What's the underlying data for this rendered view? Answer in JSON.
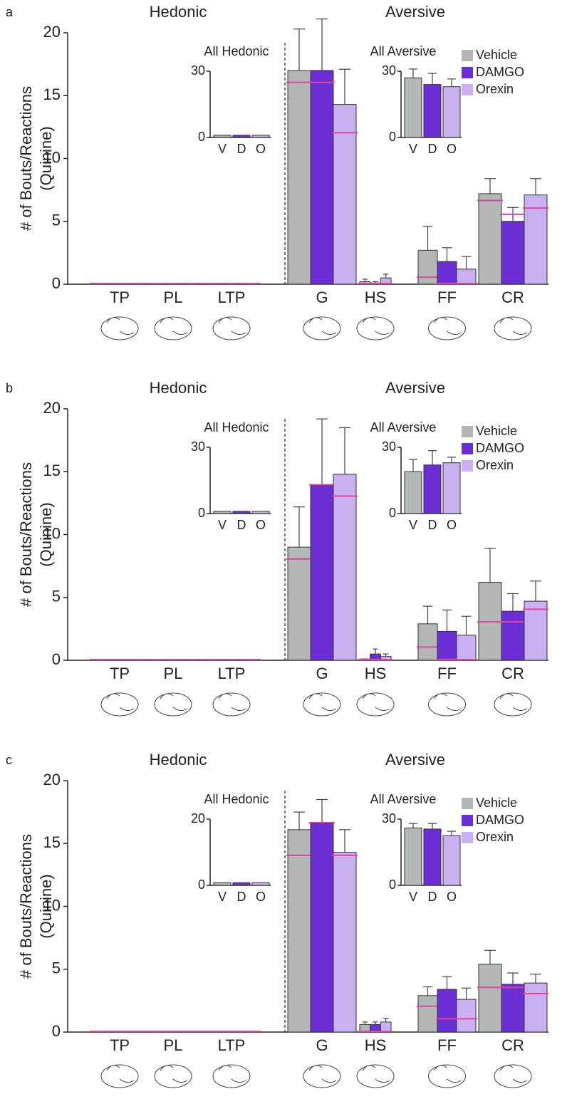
{
  "chart_data": [
    {
      "type": "bar",
      "panel": "a",
      "annotations": [
        "Hedonic",
        "Aversive"
      ],
      "y_label": [
        "# of Bouts/Reactions",
        "(Quinine)"
      ],
      "categories": [
        "TP",
        "PL",
        "LTP",
        "G",
        "HS",
        "FF",
        "CR"
      ],
      "ylim": [
        0,
        20
      ],
      "yticks": [
        0,
        5,
        10,
        15,
        20
      ],
      "median_color": "#e0449c",
      "series": [
        {
          "name": "Vehicle",
          "color": "#b3b8b6",
          "values": [
            0,
            0,
            0,
            17,
            0.2,
            2.7,
            7.2
          ],
          "errors": [
            0,
            0,
            0,
            3.3,
            0.2,
            1.9,
            1.2
          ],
          "medians": [
            0,
            0,
            0,
            16,
            0,
            0.5,
            6.6
          ]
        },
        {
          "name": "DAMGO",
          "color": "#6a2ed4",
          "values": [
            0,
            0,
            0,
            17,
            0.1,
            1.8,
            5.0
          ],
          "errors": [
            0,
            0,
            0,
            4.1,
            0.1,
            1.1,
            1.1
          ],
          "medians": [
            0,
            0,
            0,
            16,
            0,
            0,
            5.5
          ]
        },
        {
          "name": "Orexin",
          "color": "#c9b0f0",
          "values": [
            0,
            0,
            0,
            14.3,
            0.5,
            1.2,
            7.1
          ],
          "errors": [
            0,
            0,
            0,
            2.8,
            0.3,
            1.0,
            1.3
          ],
          "medians": [
            0,
            0,
            0,
            12,
            0,
            0,
            6.0
          ]
        }
      ]
    },
    {
      "type": "bar",
      "title": "All Hedonic",
      "categories": [
        "V",
        "D",
        "O"
      ],
      "values": [
        1,
        1,
        1
      ],
      "colors": [
        "#b3b8b6",
        "#6a2ed4",
        "#c9b0f0"
      ],
      "ylim": [
        0,
        30
      ],
      "yticks": [
        0,
        30
      ]
    },
    {
      "type": "bar",
      "title": "All Aversive",
      "categories": [
        "V",
        "D",
        "O"
      ],
      "values": [
        27,
        24,
        23
      ],
      "errors": [
        4,
        5,
        3.5
      ],
      "colors": [
        "#b3b8b6",
        "#6a2ed4",
        "#c9b0f0"
      ],
      "ylim": [
        0,
        30
      ],
      "yticks": [
        0,
        30
      ]
    },
    {
      "type": "bar",
      "panel": "b",
      "annotations": [
        "Hedonic",
        "Aversive"
      ],
      "y_label": [
        "# of Bouts/Reactions",
        "(Quinine)"
      ],
      "categories": [
        "TP",
        "PL",
        "LTP",
        "G",
        "HS",
        "FF",
        "CR"
      ],
      "ylim": [
        0,
        20
      ],
      "yticks": [
        0,
        5,
        10,
        15,
        20
      ],
      "median_color": "#e0449c",
      "series": [
        {
          "name": "Vehicle",
          "color": "#b3b8b6",
          "values": [
            0,
            0,
            0,
            9.0,
            0.1,
            2.9,
            6.2
          ],
          "errors": [
            0,
            0,
            0,
            3.2,
            0,
            1.4,
            2.7
          ],
          "medians": [
            0,
            0,
            0,
            8,
            0,
            1,
            3
          ]
        },
        {
          "name": "DAMGO",
          "color": "#6a2ed4",
          "values": [
            0,
            0,
            0,
            13.9,
            0.5,
            2.3,
            3.9
          ],
          "errors": [
            0,
            0,
            0,
            5.3,
            0.4,
            1.7,
            1.4
          ],
          "medians": [
            0,
            0,
            0,
            13.9,
            0,
            0,
            3
          ]
        },
        {
          "name": "Orexin",
          "color": "#c9b0f0",
          "values": [
            0,
            0,
            0,
            14.8,
            0.3,
            2.0,
            4.7
          ],
          "errors": [
            0,
            0,
            0,
            3.7,
            0.2,
            1.5,
            1.6
          ],
          "medians": [
            0,
            0,
            0,
            13,
            0,
            0,
            4
          ]
        }
      ]
    },
    {
      "type": "bar",
      "title": "All Hedonic",
      "categories": [
        "V",
        "D",
        "O"
      ],
      "values": [
        1,
        1,
        1
      ],
      "colors": [
        "#b3b8b6",
        "#6a2ed4",
        "#c9b0f0"
      ],
      "ylim": [
        0,
        30
      ],
      "yticks": [
        0,
        30
      ]
    },
    {
      "type": "bar",
      "title": "All Aversive",
      "categories": [
        "V",
        "D",
        "O"
      ],
      "values": [
        19,
        22,
        23
      ],
      "errors": [
        5.5,
        6.5,
        2.5
      ],
      "colors": [
        "#b3b8b6",
        "#6a2ed4",
        "#c9b0f0"
      ],
      "ylim": [
        0,
        30
      ],
      "yticks": [
        0,
        30
      ]
    },
    {
      "type": "bar",
      "panel": "c",
      "annotations": [
        "Hedonic",
        "Aversive"
      ],
      "y_label": [
        "# of Bouts/Reactions",
        "(Quinine)"
      ],
      "categories": [
        "TP",
        "PL",
        "LTP",
        "G",
        "HS",
        "FF",
        "CR"
      ],
      "ylim": [
        0,
        20
      ],
      "yticks": [
        0,
        5,
        10,
        15,
        20
      ],
      "median_color": "#e0449c",
      "series": [
        {
          "name": "Vehicle",
          "color": "#b3b8b6",
          "values": [
            0,
            0,
            0,
            16.1,
            0.6,
            2.9,
            5.4
          ],
          "errors": [
            0,
            0,
            0,
            1.4,
            0.2,
            0.7,
            1.1
          ],
          "medians": [
            0,
            0,
            0,
            14,
            0,
            2,
            3.5
          ]
        },
        {
          "name": "DAMGO",
          "color": "#6a2ed4",
          "values": [
            0,
            0,
            0,
            16.6,
            0.6,
            3.4,
            3.8
          ],
          "errors": [
            0,
            0,
            0,
            1.9,
            0.2,
            1.0,
            0.9
          ],
          "medians": [
            0,
            0,
            0,
            16.6,
            0,
            1,
            3.5
          ]
        },
        {
          "name": "Orexin",
          "color": "#c9b0f0",
          "values": [
            0,
            0,
            0,
            14.3,
            0.8,
            2.6,
            3.9
          ],
          "errors": [
            0,
            0,
            0,
            1.8,
            0.3,
            0.9,
            0.7
          ],
          "medians": [
            0,
            0,
            0,
            14,
            0,
            1,
            3
          ]
        }
      ]
    },
    {
      "type": "bar",
      "title": "All Hedonic",
      "categories": [
        "V",
        "D",
        "O"
      ],
      "values": [
        0.8,
        0.8,
        0.8
      ],
      "colors": [
        "#b3b8b6",
        "#6a2ed4",
        "#c9b0f0"
      ],
      "ylim": [
        0,
        20
      ],
      "yticks": [
        0,
        20
      ]
    },
    {
      "type": "bar",
      "title": "All Aversive",
      "categories": [
        "V",
        "D",
        "O"
      ],
      "values": [
        26,
        25.5,
        22.5
      ],
      "errors": [
        2,
        2.5,
        2
      ],
      "colors": [
        "#b3b8b6",
        "#6a2ed4",
        "#c9b0f0"
      ],
      "ylim": [
        0,
        30
      ],
      "yticks": [
        0,
        30
      ]
    }
  ]
}
